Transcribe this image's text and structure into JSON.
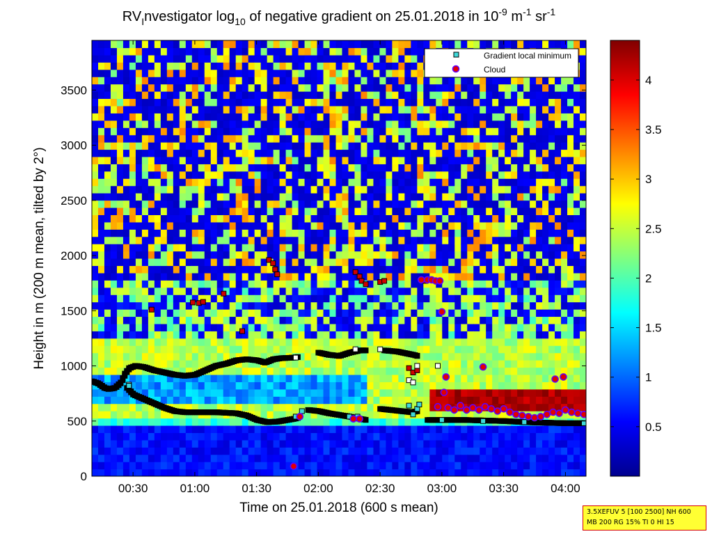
{
  "chart_data": {
    "type": "heatmap",
    "title": {
      "p1": "RV",
      "p1_sub": "I",
      "p2": "nvestigator log",
      "p2_sub": "10",
      "p3": " of negative gradient on 25.01.2018 in 10",
      "p3_sup": "-9",
      "p4": " m",
      "p4_sup": "-1",
      "p5": " sr",
      "p5_sup": "-1"
    },
    "xlabel": "Time on 25.01.2018 (600 s mean)",
    "ylabel": "Height in m (200 m mean, tilted by 2°)",
    "x_unit": "hh:mm",
    "xlim": [
      "00:10",
      "04:10"
    ],
    "ylim": [
      0,
      3950
    ],
    "x_ticks": [
      "00:30",
      "01:00",
      "01:30",
      "02:00",
      "02:30",
      "03:00",
      "03:30",
      "04:00"
    ],
    "y_ticks": [
      0,
      500,
      1000,
      1500,
      2000,
      2500,
      3000,
      3500
    ],
    "colorbar": {
      "range": [
        0,
        4.4
      ],
      "ticks": [
        "0.5",
        "1",
        "1.5",
        "2",
        "2.5",
        "3",
        "3.5",
        "4"
      ],
      "colormap": [
        "#00008f",
        "#0000ff",
        "#00ffff",
        "#ffff00",
        "#ff0000",
        "#800000"
      ]
    },
    "legend": {
      "position": "top-right",
      "entries": [
        {
          "label": "Gradient local minimum",
          "marker": "square",
          "color": "#3fd9d9"
        },
        {
          "label": "Cloud",
          "marker": "circle",
          "color": "#e00000",
          "edge": "#6000ff"
        }
      ]
    },
    "series": [
      {
        "marker": "square-black",
        "segments": [
          [
            [
              "00:10",
              860
            ],
            [
              "00:13",
              840
            ],
            [
              "00:16",
              800
            ],
            [
              "00:18",
              790
            ],
            [
              "00:21",
              800
            ],
            [
              "00:24",
              850
            ],
            [
              "00:26",
              930
            ],
            [
              "00:28",
              980
            ],
            [
              "00:31",
              1000
            ],
            [
              "00:35",
              990
            ],
            [
              "00:40",
              960
            ],
            [
              "00:45",
              940
            ],
            [
              "00:50",
              920
            ],
            [
              "00:55",
              910
            ],
            [
              "01:00",
              920
            ],
            [
              "01:05",
              960
            ],
            [
              "01:10",
              1000
            ],
            [
              "01:15",
              1020
            ],
            [
              "01:20",
              1050
            ],
            [
              "01:25",
              1060
            ],
            [
              "01:30",
              1050
            ],
            [
              "01:34",
              1030
            ],
            [
              "01:38",
              1060
            ],
            [
              "01:42",
              1070
            ],
            [
              "01:48",
              1075
            ],
            [
              "01:50",
              1080
            ]
          ],
          [
            [
              "02:00",
              1120
            ],
            [
              "02:05",
              1100
            ],
            [
              "02:10",
              1090
            ],
            [
              "02:15",
              1120
            ],
            [
              "02:20",
              1140
            ],
            [
              "02:23",
              1140
            ]
          ],
          [
            [
              "02:32",
              1140
            ],
            [
              "02:38",
              1130
            ],
            [
              "02:42",
              1115
            ],
            [
              "02:46",
              1100
            ],
            [
              "02:48",
              1090
            ]
          ]
        ]
      },
      {
        "marker": "square-black",
        "segments": [
          [
            [
              "00:27",
              800
            ],
            [
              "00:30",
              740
            ],
            [
              "00:35",
              700
            ],
            [
              "00:40",
              660
            ],
            [
              "00:45",
              620
            ],
            [
              "00:50",
              590
            ],
            [
              "00:55",
              580
            ],
            [
              "01:00",
              580
            ],
            [
              "01:10",
              580
            ],
            [
              "01:20",
              570
            ],
            [
              "01:25",
              550
            ],
            [
              "01:30",
              510
            ],
            [
              "01:35",
              490
            ],
            [
              "01:40",
              495
            ],
            [
              "01:48",
              520
            ],
            [
              "01:50",
              530
            ]
          ],
          [
            [
              "01:55",
              600
            ],
            [
              "02:00",
              590
            ],
            [
              "02:05",
              570
            ],
            [
              "02:10",
              555
            ],
            [
              "02:15",
              540
            ],
            [
              "02:20",
              520
            ],
            [
              "02:23",
              510
            ]
          ],
          [
            [
              "02:30",
              610
            ],
            [
              "02:35",
              600
            ],
            [
              "02:40",
              590
            ],
            [
              "02:45",
              580
            ],
            [
              "02:48",
              590
            ]
          ],
          [
            [
              "02:53",
              510
            ],
            [
              "03:00",
              510
            ],
            [
              "03:10",
              510
            ],
            [
              "03:20",
              505
            ],
            [
              "03:30",
              500
            ],
            [
              "03:40",
              490
            ],
            [
              "03:50",
              485
            ],
            [
              "04:00",
              480
            ],
            [
              "04:09",
              480
            ]
          ]
        ]
      },
      {
        "marker": "square-red",
        "points": [
          [
            "00:39",
            1510
          ],
          [
            "00:59",
            1575
          ],
          [
            "01:02",
            1570
          ],
          [
            "01:04",
            1580
          ],
          [
            "01:14",
            1655
          ],
          [
            "01:23",
            1315
          ],
          [
            "01:36",
            1960
          ],
          [
            "01:38",
            1930
          ],
          [
            "01:39",
            1875
          ],
          [
            "01:40",
            1830
          ],
          [
            "02:18",
            1850
          ],
          [
            "02:20",
            1810
          ],
          [
            "02:21",
            1770
          ],
          [
            "02:23",
            1740
          ],
          [
            "02:30",
            1760
          ],
          [
            "02:32",
            1770
          ],
          [
            "02:44",
            980
          ],
          [
            "02:46",
            940
          ],
          [
            "02:48",
            960
          ],
          [
            "02:52",
            1770
          ]
        ]
      },
      {
        "marker": "square-white",
        "points": [
          [
            "00:28",
            830
          ],
          [
            "01:49",
            1075
          ],
          [
            "02:18",
            1150
          ],
          [
            "02:30",
            1150
          ],
          [
            "02:44",
            870
          ],
          [
            "02:46",
            850
          ],
          [
            "02:48",
            1000
          ],
          [
            "02:58",
            1000
          ]
        ]
      },
      {
        "marker": "square-cyan",
        "points": [
          [
            "00:28",
            820
          ],
          [
            "01:49",
            540
          ],
          [
            "01:52",
            590
          ],
          [
            "02:15",
            540
          ],
          [
            "02:19",
            540
          ],
          [
            "02:44",
            640
          ],
          [
            "02:46",
            560
          ],
          [
            "02:48",
            610
          ],
          [
            "02:49",
            650
          ],
          [
            "03:00",
            510
          ],
          [
            "03:20",
            500
          ],
          [
            "03:40",
            490
          ],
          [
            "04:09",
            480
          ]
        ]
      },
      {
        "marker": "circle-cloud",
        "points": [
          [
            "01:48",
            90
          ],
          [
            "01:51",
            540
          ],
          [
            "02:17",
            520
          ],
          [
            "02:20",
            520
          ],
          [
            "02:50",
            1780
          ],
          [
            "02:53",
            1780
          ],
          [
            "02:55",
            1780
          ],
          [
            "02:57",
            1770
          ],
          [
            "02:59",
            1770
          ],
          [
            "03:00",
            1490
          ],
          [
            "03:02",
            900
          ],
          [
            "03:01",
            760
          ],
          [
            "03:20",
            990
          ],
          [
            "03:55",
            880
          ],
          [
            "03:59",
            900
          ],
          [
            "02:58",
            630
          ],
          [
            "03:03",
            620
          ],
          [
            "03:06",
            600
          ],
          [
            "03:09",
            640
          ],
          [
            "03:12",
            600
          ],
          [
            "03:15",
            620
          ],
          [
            "03:18",
            600
          ],
          [
            "03:21",
            630
          ],
          [
            "03:24",
            610
          ],
          [
            "03:27",
            590
          ],
          [
            "03:30",
            610
          ],
          [
            "03:33",
            580
          ],
          [
            "03:36",
            560
          ],
          [
            "03:39",
            550
          ],
          [
            "03:42",
            540
          ],
          [
            "03:45",
            530
          ],
          [
            "03:48",
            540
          ],
          [
            "03:51",
            560
          ],
          [
            "03:54",
            580
          ],
          [
            "03:57",
            570
          ],
          [
            "04:00",
            600
          ],
          [
            "04:03",
            580
          ],
          [
            "04:06",
            570
          ],
          [
            "04:09",
            560
          ]
        ]
      }
    ]
  },
  "info_box": {
    "line1": "3.5XEFUV 5 [100 2500] NH 600",
    "line2": "MB 200 RG 15% TI 0 HI 15"
  }
}
